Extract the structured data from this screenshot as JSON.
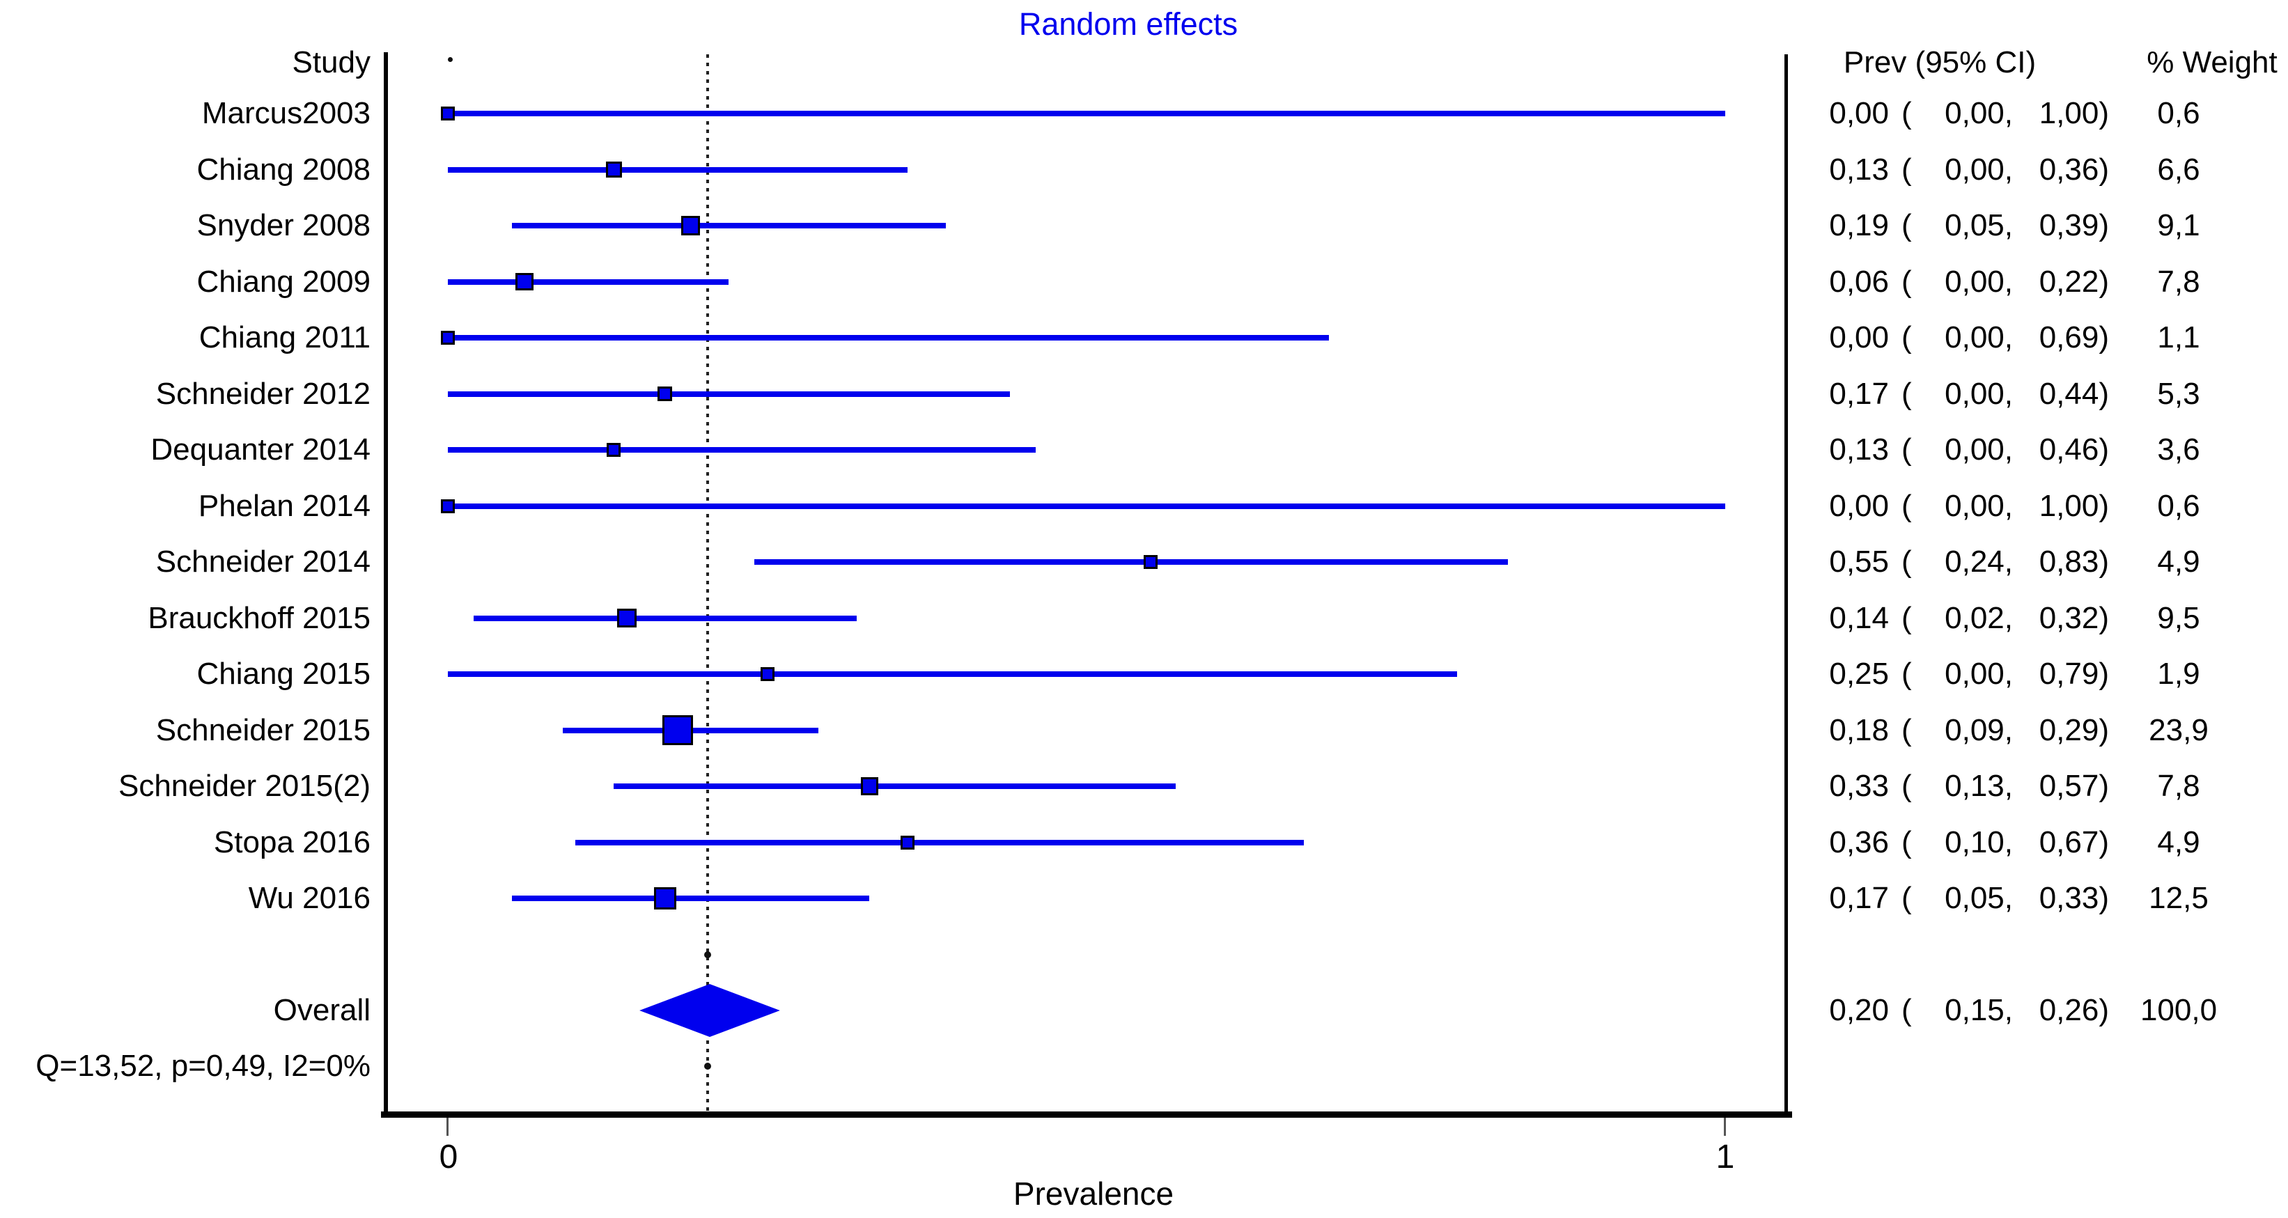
{
  "title": {
    "text": "Random effects",
    "color": "#0000ee"
  },
  "headers": {
    "study": "Study",
    "prev": "Prev (95% CI)",
    "weight": "% Weight"
  },
  "axis": {
    "xlabel": "Prevalence",
    "tick_labels": [
      "0",
      "1"
    ],
    "xmin": 0,
    "xmax": 1
  },
  "overall_row": {
    "label": "Overall"
  },
  "heterogeneity_text": "Q=13,52, p=0,49, I2=0%",
  "colors": {
    "marker_blue": "#0000ee",
    "text_black": "#000000"
  },
  "chart_data": {
    "type": "forest",
    "title": "Random effects",
    "xlabel": "Prevalence",
    "xlim": [
      0,
      1
    ],
    "dotted_reference_value": 0.2035,
    "studies": [
      {
        "label": "Marcus2003",
        "prev": 0.0,
        "lo": 0.0,
        "hi": 1.0,
        "prev_text": "0,00",
        "lo_text": "0,00",
        "hi_text": "1,00",
        "weight": 0.6,
        "weight_text": "0,6"
      },
      {
        "label": "Chiang 2008",
        "prev": 0.13,
        "lo": 0.0,
        "hi": 0.36,
        "prev_text": "0,13",
        "lo_text": "0,00",
        "hi_text": "0,36",
        "weight": 6.6,
        "weight_text": "6,6"
      },
      {
        "label": "Snyder 2008",
        "prev": 0.19,
        "lo": 0.05,
        "hi": 0.39,
        "prev_text": "0,19",
        "lo_text": "0,05",
        "hi_text": "0,39",
        "weight": 9.1,
        "weight_text": "9,1"
      },
      {
        "label": "Chiang 2009",
        "prev": 0.06,
        "lo": 0.0,
        "hi": 0.22,
        "prev_text": "0,06",
        "lo_text": "0,00",
        "hi_text": "0,22",
        "weight": 7.8,
        "weight_text": "7,8"
      },
      {
        "label": "Chiang 2011",
        "prev": 0.0,
        "lo": 0.0,
        "hi": 0.69,
        "prev_text": "0,00",
        "lo_text": "0,00",
        "hi_text": "0,69",
        "weight": 1.1,
        "weight_text": "1,1"
      },
      {
        "label": "Schneider 2012",
        "prev": 0.17,
        "lo": 0.0,
        "hi": 0.44,
        "prev_text": "0,17",
        "lo_text": "0,00",
        "hi_text": "0,44",
        "weight": 5.3,
        "weight_text": "5,3"
      },
      {
        "label": "Dequanter 2014",
        "prev": 0.13,
        "lo": 0.0,
        "hi": 0.46,
        "prev_text": "0,13",
        "lo_text": "0,00",
        "hi_text": "0,46",
        "weight": 3.6,
        "weight_text": "3,6"
      },
      {
        "label": "Phelan 2014",
        "prev": 0.0,
        "lo": 0.0,
        "hi": 1.0,
        "prev_text": "0,00",
        "lo_text": "0,00",
        "hi_text": "1,00",
        "weight": 0.6,
        "weight_text": "0,6"
      },
      {
        "label": "Schneider 2014",
        "prev": 0.55,
        "lo": 0.24,
        "hi": 0.83,
        "prev_text": "0,55",
        "lo_text": "0,24",
        "hi_text": "0,83",
        "weight": 4.9,
        "weight_text": "4,9"
      },
      {
        "label": "Brauckhoff 2015",
        "prev": 0.14,
        "lo": 0.02,
        "hi": 0.32,
        "prev_text": "0,14",
        "lo_text": "0,02",
        "hi_text": "0,32",
        "weight": 9.5,
        "weight_text": "9,5"
      },
      {
        "label": "Chiang 2015",
        "prev": 0.25,
        "lo": 0.0,
        "hi": 0.79,
        "prev_text": "0,25",
        "lo_text": "0,00",
        "hi_text": "0,79",
        "weight": 1.9,
        "weight_text": "1,9"
      },
      {
        "label": "Schneider 2015",
        "prev": 0.18,
        "lo": 0.09,
        "hi": 0.29,
        "prev_text": "0,18",
        "lo_text": "0,09",
        "hi_text": "0,29",
        "weight": 23.9,
        "weight_text": "23,9"
      },
      {
        "label": "Schneider 2015(2)",
        "prev": 0.33,
        "lo": 0.13,
        "hi": 0.57,
        "prev_text": "0,33",
        "lo_text": "0,13",
        "hi_text": "0,57",
        "weight": 7.8,
        "weight_text": "7,8"
      },
      {
        "label": "Stopa 2016",
        "prev": 0.36,
        "lo": 0.1,
        "hi": 0.67,
        "prev_text": "0,36",
        "lo_text": "0,10",
        "hi_text": "0,67",
        "weight": 4.9,
        "weight_text": "4,9"
      },
      {
        "label": "Wu 2016",
        "prev": 0.17,
        "lo": 0.05,
        "hi": 0.33,
        "prev_text": "0,17",
        "lo_text": "0,05",
        "hi_text": "0,33",
        "weight": 12.5,
        "weight_text": "12,5"
      }
    ],
    "overall": {
      "label": "Overall",
      "prev": 0.2,
      "lo": 0.15,
      "hi": 0.26,
      "prev_text": "0,20",
      "lo_text": "0,15",
      "hi_text": "0,26",
      "weight": 100.0,
      "weight_text": "100,0"
    },
    "heterogeneity": {
      "Q": "13,52",
      "p": "0,49",
      "I2": "0%"
    },
    "extra_dots": [
      {
        "row": "header",
        "value": 0.002
      },
      {
        "row": "spacer",
        "value": 0.2035
      },
      {
        "row": "q",
        "value": 0.2035
      }
    ]
  }
}
